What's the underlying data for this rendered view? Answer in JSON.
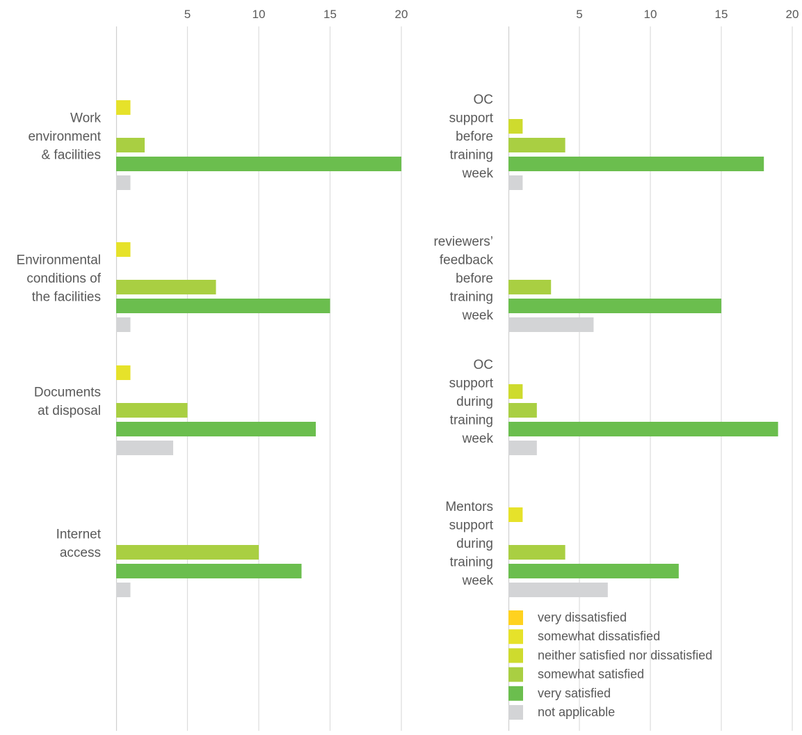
{
  "chart_data": [
    {
      "type": "bar",
      "orientation": "horizontal",
      "xlim": [
        0,
        20
      ],
      "ticks": [
        5,
        10,
        15,
        20
      ],
      "grid": true,
      "categories": [
        {
          "label_lines": [
            "Work",
            "environment",
            "& facilities"
          ],
          "values": [
            0,
            1,
            0,
            2,
            20,
            1
          ]
        },
        {
          "label_lines": [
            "Environmental",
            "conditions of",
            "the facilities"
          ],
          "values": [
            0,
            1,
            0,
            7,
            15,
            1
          ]
        },
        {
          "label_lines": [
            "Documents",
            "at disposal"
          ],
          "values": [
            0,
            1,
            0,
            5,
            14,
            4
          ]
        },
        {
          "label_lines": [
            "Internet",
            "access"
          ],
          "values": [
            0,
            0,
            0,
            10,
            13,
            1
          ]
        }
      ]
    },
    {
      "type": "bar",
      "orientation": "horizontal",
      "xlim": [
        0,
        20
      ],
      "ticks": [
        5,
        10,
        15,
        20
      ],
      "grid": true,
      "categories": [
        {
          "label_lines": [
            "OC",
            "support",
            "before",
            "training",
            "week"
          ],
          "values": [
            0,
            0,
            1,
            4,
            18,
            1
          ]
        },
        {
          "label_lines": [
            "reviewers’",
            "feedback",
            "before",
            "training",
            "week"
          ],
          "values": [
            0,
            0,
            0,
            3,
            15,
            6
          ]
        },
        {
          "label_lines": [
            "OC",
            "support",
            "during",
            "training",
            "week"
          ],
          "values": [
            0,
            0,
            1,
            2,
            19,
            2
          ]
        },
        {
          "label_lines": [
            "Mentors",
            "support",
            "during",
            "training",
            "week"
          ],
          "values": [
            0,
            1,
            0,
            4,
            12,
            7
          ]
        }
      ]
    }
  ],
  "legend": {
    "placement": "bottom-right",
    "items": [
      {
        "label": "very dissatisfied",
        "color": "#FFD21F"
      },
      {
        "label": "somewhat dissatisfied",
        "color": "#E6E22A"
      },
      {
        "label": "neither satisfied nor dissatisfied",
        "color": "#CEDB2E"
      },
      {
        "label": "somewhat satisfied",
        "color": "#A9CF42"
      },
      {
        "label": "very satisfied",
        "color": "#6BBE4E"
      },
      {
        "label": "not applicable",
        "color": "#D3D4D6"
      }
    ]
  }
}
